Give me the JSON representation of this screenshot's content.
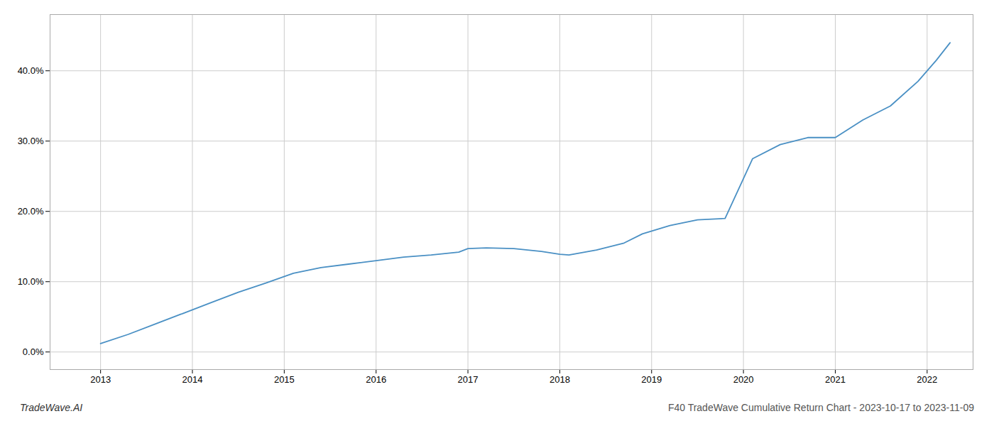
{
  "chart_data": {
    "type": "line",
    "x": [
      2013.0,
      2013.3,
      2013.6,
      2013.9,
      2014.2,
      2014.5,
      2014.8,
      2015.1,
      2015.4,
      2015.7,
      2016.0,
      2016.3,
      2016.6,
      2016.9,
      2017.0,
      2017.2,
      2017.5,
      2017.8,
      2018.0,
      2018.1,
      2018.4,
      2018.7,
      2018.9,
      2019.2,
      2019.5,
      2019.8,
      2020.1,
      2020.4,
      2020.7,
      2021.0,
      2021.3,
      2021.6,
      2021.9,
      2022.1,
      2022.25
    ],
    "values": [
      1.2,
      2.5,
      4.0,
      5.5,
      7.0,
      8.5,
      9.8,
      11.2,
      12.0,
      12.5,
      13.0,
      13.5,
      13.8,
      14.2,
      14.7,
      14.8,
      14.7,
      14.3,
      13.9,
      13.8,
      14.5,
      15.5,
      16.8,
      18.0,
      18.8,
      19.0,
      27.5,
      29.5,
      30.5,
      30.5,
      33.0,
      35.0,
      38.5,
      41.5,
      44.0
    ],
    "color": "#4a90c4",
    "xlim": [
      2012.45,
      2022.5
    ],
    "xticks": [
      2013,
      2014,
      2015,
      2016,
      2017,
      2018,
      2019,
      2020,
      2021,
      2022
    ],
    "ylim": [
      -2.5,
      48
    ],
    "yticks": [
      {
        "value": 0,
        "label": "0.0%"
      },
      {
        "value": 10,
        "label": "10.0%"
      },
      {
        "value": 20,
        "label": "20.0%"
      },
      {
        "value": 30,
        "label": "30.0%"
      },
      {
        "value": 40,
        "label": "40.0%"
      }
    ],
    "grid": true,
    "annotations": [
      "TradeWave.AI",
      "F40 TradeWave Cumulative Return Chart - 2023-10-17 to 2023-11-09"
    ]
  }
}
